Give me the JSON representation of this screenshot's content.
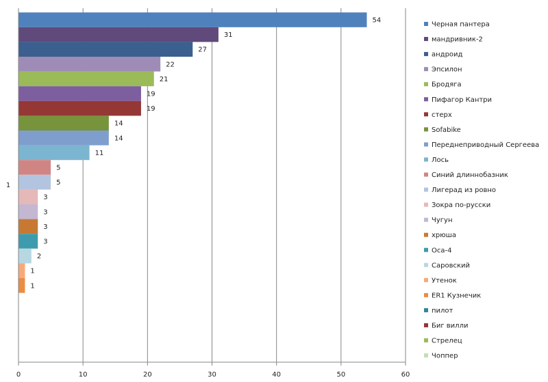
{
  "chart_data": {
    "type": "bar",
    "orientation": "horizontal",
    "xlim": [
      0,
      60
    ],
    "xticks": [
      "0",
      "10",
      "20",
      "30",
      "40",
      "50",
      "60"
    ],
    "category_axis_label": "1",
    "grid": "vertical",
    "legend_position": "right",
    "series": [
      {
        "name": "Черная пантера",
        "value": 54,
        "color": "#4F81BD"
      },
      {
        "name": "мандривник-2",
        "value": 31,
        "color": "#604A7B"
      },
      {
        "name": "андроид",
        "value": 27,
        "color": "#3B5F8E"
      },
      {
        "name": "Эпсилон",
        "value": 22,
        "color": "#9F8CB6"
      },
      {
        "name": "Бродяга",
        "value": 21,
        "color": "#9BBB59"
      },
      {
        "name": "Пифагор Кантри",
        "value": 19,
        "color": "#7D5E9E"
      },
      {
        "name": "стерх",
        "value": 19,
        "color": "#953735"
      },
      {
        "name": "Sofabike",
        "value": 14,
        "color": "#77933C"
      },
      {
        "name": "Переднеприводный  Сергеева",
        "value": 14,
        "color": "#7F9ECE"
      },
      {
        "name": "Лось",
        "value": 11,
        "color": "#7CB5CF"
      },
      {
        "name": "Синий длиннобазник",
        "value": 5,
        "color": "#D08584"
      },
      {
        "name": "Лигерад из ровно",
        "value": 5,
        "color": "#B3C4E0"
      },
      {
        "name": "Зокра по-русски",
        "value": 3,
        "color": "#E5B9B7"
      },
      {
        "name": "Чугун",
        "value": 3,
        "color": "#C3B7D2"
      },
      {
        "name": "хрюша",
        "value": 3,
        "color": "#C77933"
      },
      {
        "name": "Оса-4",
        "value": 3,
        "color": "#3E9BAE"
      },
      {
        "name": "Саровский",
        "value": 2,
        "color": "#B7D8E2"
      },
      {
        "name": "Утенок",
        "value": 1,
        "color": "#F8A97A"
      },
      {
        "name": "ER1 Кузнечик",
        "value": 1,
        "color": "#EB8C44"
      },
      {
        "name": "пилот",
        "value": null,
        "color": "#31859C"
      },
      {
        "name": "Биг вилли",
        "value": null,
        "color": "#953735"
      },
      {
        "name": "Стрелец",
        "value": null,
        "color": "#9BBB59"
      },
      {
        "name": "Чоппер",
        "value": null,
        "color": "#C4DEB5"
      }
    ]
  }
}
